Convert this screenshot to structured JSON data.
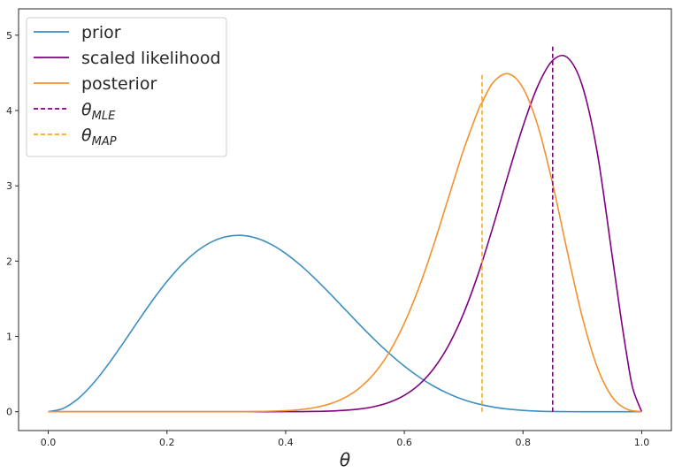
{
  "chart_data": {
    "type": "line",
    "title": "",
    "xlabel": "θ",
    "ylabel": "",
    "xlim": [
      -0.05,
      1.05
    ],
    "ylim": [
      -0.25,
      5.35
    ],
    "xticks": [
      0.0,
      0.2,
      0.4,
      0.6,
      0.8,
      1.0
    ],
    "xtick_labels": [
      "0.0",
      "0.2",
      "0.4",
      "0.6",
      "0.8",
      "1.0"
    ],
    "yticks": [
      0,
      1,
      2,
      3,
      4,
      5
    ],
    "ytick_labels": [
      "0",
      "1",
      "2",
      "3",
      "4",
      "5"
    ],
    "grid": false,
    "legend_position": "top-left",
    "series": [
      {
        "name": "prior",
        "style": "solid",
        "color": "#3a8fc1",
        "x": [
          0.0,
          0.025,
          0.05,
          0.075,
          0.1,
          0.125,
          0.15,
          0.175,
          0.2,
          0.225,
          0.25,
          0.275,
          0.3,
          0.325,
          0.35,
          0.375,
          0.4,
          0.425,
          0.45,
          0.475,
          0.5,
          0.525,
          0.55,
          0.575,
          0.6,
          0.625,
          0.65,
          0.675,
          0.7,
          0.725,
          0.75,
          0.775,
          0.8,
          0.825,
          0.85,
          0.875,
          0.9,
          0.925,
          0.95,
          0.975,
          1.0
        ],
        "y": [
          0.0,
          0.044,
          0.171,
          0.369,
          0.618,
          0.897,
          1.187,
          1.47,
          1.729,
          1.952,
          2.129,
          2.254,
          2.325,
          2.342,
          2.307,
          2.225,
          2.102,
          1.946,
          1.764,
          1.566,
          1.36,
          1.154,
          0.956,
          0.772,
          0.605,
          0.46,
          0.337,
          0.238,
          0.16,
          0.103,
          0.062,
          0.035,
          0.018,
          0.008,
          0.003,
          0.001,
          0.0,
          0.0,
          0.0,
          0.0,
          0.0
        ]
      },
      {
        "name": "scaled likelihood",
        "style": "solid",
        "color": "#800080",
        "x": [
          0.0,
          0.1,
          0.2,
          0.3,
          0.35,
          0.4,
          0.425,
          0.45,
          0.475,
          0.5,
          0.525,
          0.55,
          0.575,
          0.6,
          0.625,
          0.65,
          0.675,
          0.7,
          0.725,
          0.75,
          0.775,
          0.8,
          0.825,
          0.85,
          0.875,
          0.9,
          0.925,
          0.95,
          0.965,
          0.975,
          0.985,
          1.0
        ],
        "y": [
          0.0,
          0.0,
          0.0,
          0.0,
          0.0,
          0.001,
          0.002,
          0.004,
          0.009,
          0.019,
          0.037,
          0.07,
          0.126,
          0.217,
          0.361,
          0.578,
          0.888,
          1.308,
          1.842,
          2.472,
          3.148,
          3.792,
          4.327,
          4.665,
          4.702,
          4.326,
          3.446,
          2.083,
          1.251,
          0.744,
          0.31,
          0.0
        ]
      },
      {
        "name": "posterior",
        "style": "solid",
        "color": "#f2922e",
        "x": [
          0.0,
          0.3,
          0.35,
          0.4,
          0.425,
          0.45,
          0.475,
          0.5,
          0.525,
          0.55,
          0.575,
          0.6,
          0.625,
          0.65,
          0.675,
          0.7,
          0.725,
          0.731,
          0.75,
          0.775,
          0.8,
          0.825,
          0.85,
          0.875,
          0.9,
          0.925,
          0.95,
          0.975,
          1.0
        ],
        "y": [
          0.0,
          0.0,
          0.003,
          0.014,
          0.029,
          0.057,
          0.106,
          0.188,
          0.318,
          0.514,
          0.795,
          1.175,
          1.657,
          2.229,
          2.857,
          3.479,
          4.014,
          4.106,
          4.376,
          4.488,
          4.298,
          3.797,
          3.025,
          2.112,
          1.253,
          0.593,
          0.199,
          0.034,
          0.0
        ]
      },
      {
        "name": "θ_MLE",
        "style": "dashed",
        "color": "#800080",
        "x": [
          0.85,
          0.85
        ],
        "y": [
          0.0,
          4.87
        ]
      },
      {
        "name": "θ_MAP",
        "style": "dashed",
        "color": "#f5a623",
        "x": [
          0.731,
          0.731
        ],
        "y": [
          0.0,
          4.48
        ]
      }
    ]
  },
  "legend": [
    {
      "base": "prior",
      "sub": "",
      "color": "#3a8fc1",
      "style": "solid"
    },
    {
      "base": "scaled likelihood",
      "sub": "",
      "color": "#800080",
      "style": "solid"
    },
    {
      "base": "posterior",
      "sub": "",
      "color": "#f2922e",
      "style": "solid"
    },
    {
      "base": "θ",
      "sub": "MLE",
      "color": "#800080",
      "style": "dashed"
    },
    {
      "base": "θ",
      "sub": "MAP",
      "color": "#f5a623",
      "style": "dashed"
    }
  ]
}
